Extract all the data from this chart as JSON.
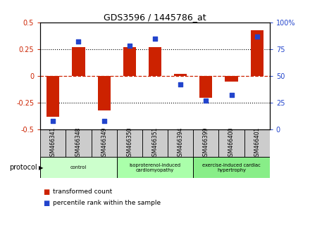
{
  "title": "GDS3596 / 1445786_at",
  "samples": [
    "GSM466341",
    "GSM466348",
    "GSM466349",
    "GSM466350",
    "GSM466351",
    "GSM466394",
    "GSM466399",
    "GSM466400",
    "GSM466401"
  ],
  "bar_values": [
    -0.38,
    0.27,
    -0.32,
    0.27,
    0.27,
    0.02,
    -0.2,
    -0.05,
    0.43
  ],
  "dot_values": [
    8,
    82,
    8,
    78,
    85,
    42,
    27,
    32,
    87
  ],
  "bar_color": "#cc2200",
  "dot_color": "#2244cc",
  "ylim_left": [
    -0.5,
    0.5
  ],
  "ylim_right": [
    0,
    100
  ],
  "yticks_left": [
    -0.5,
    -0.25,
    0.0,
    0.25,
    0.5
  ],
  "yticks_right": [
    0,
    25,
    50,
    75,
    100
  ],
  "ytick_labels_left": [
    "-0.5",
    "-0.25",
    "0",
    "0.25",
    "0.5"
  ],
  "ytick_labels_right": [
    "0",
    "25",
    "50",
    "75",
    "100%"
  ],
  "groups": [
    {
      "label": "control",
      "indices": [
        0,
        1,
        2
      ],
      "color": "#ccffcc"
    },
    {
      "label": "isoproterenol-induced\ncardiomyopathy",
      "indices": [
        3,
        4,
        5
      ],
      "color": "#aaffaa"
    },
    {
      "label": "exercise-induced cardiac\nhypertrophy",
      "indices": [
        6,
        7,
        8
      ],
      "color": "#88ee88"
    }
  ],
  "legend_bar_label": "transformed count",
  "legend_dot_label": "percentile rank within the sample",
  "protocol_label": "protocol",
  "grid_color": "#555555",
  "zero_line_color": "#cc2200",
  "background_color": "#ffffff",
  "sample_cell_color": "#cccccc",
  "bar_width": 0.5
}
